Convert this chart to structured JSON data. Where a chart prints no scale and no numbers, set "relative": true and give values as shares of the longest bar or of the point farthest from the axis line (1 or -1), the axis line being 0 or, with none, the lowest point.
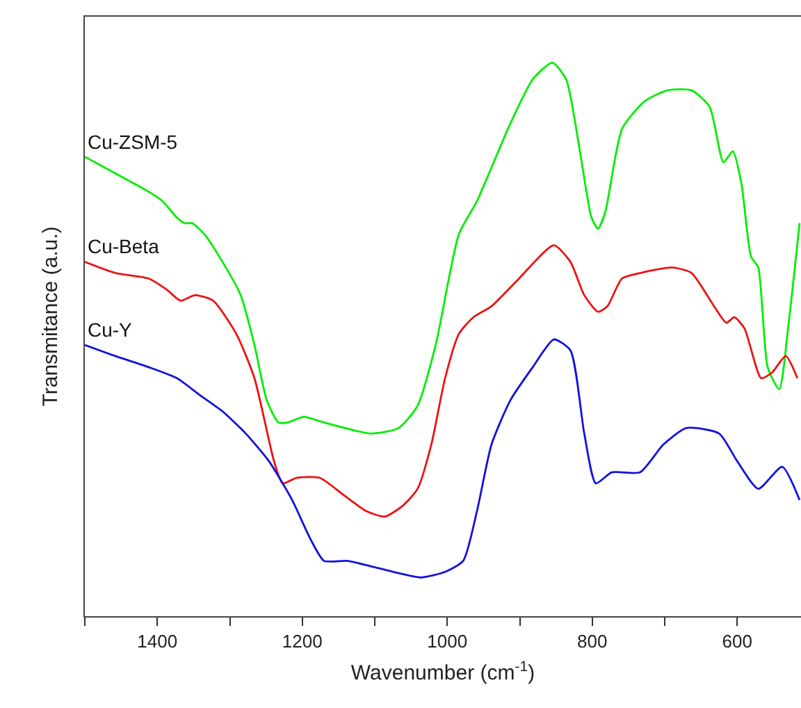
{
  "chart_data": {
    "type": "line",
    "relative": true,
    "xlabel": "Wavenumber (cm$^{-1}$)",
    "ylabel": "Transmitance (a.u.)",
    "xlim": [
      1500,
      512
    ],
    "xticks": [
      {
        "value": 1500,
        "label": null
      },
      1400,
      {
        "value": 1300,
        "label": null
      },
      1200,
      {
        "value": 1100,
        "label": null
      },
      1000,
      {
        "value": 900,
        "label": null
      },
      800,
      {
        "value": 700,
        "label": null
      },
      600
    ],
    "legend": false,
    "marker": "none",
    "line_style": "solid",
    "series": [
      {
        "name": "Cu-ZSM-5",
        "color": "#00ee00",
        "x": [
          1500,
          1458,
          1416,
          1393,
          1373,
          1362,
          1352,
          1335,
          1310,
          1285,
          1266,
          1249,
          1233,
          1220,
          1198,
          1170,
          1105,
          1067,
          1041,
          1016,
          984,
          959,
          913,
          882,
          855,
          836,
          817,
          801,
          792,
          782,
          759,
          728,
          696,
          663,
          638,
          619,
          606,
          594,
          581,
          571,
          558,
          542,
          529,
          514
        ],
        "values": [
          0.83,
          0.8,
          0.77,
          0.75,
          0.72,
          0.71,
          0.71,
          0.69,
          0.64,
          0.58,
          0.49,
          0.39,
          0.35,
          0.35,
          0.36,
          0.35,
          0.33,
          0.34,
          0.38,
          0.49,
          0.69,
          0.75,
          0.89,
          0.97,
          1.0,
          0.97,
          0.84,
          0.72,
          0.7,
          0.73,
          0.88,
          0.93,
          0.95,
          0.95,
          0.92,
          0.82,
          0.84,
          0.78,
          0.65,
          0.63,
          0.45,
          0.41,
          0.53,
          0.71
        ]
      },
      {
        "name": "Cu-Beta",
        "color": "#ee1111",
        "x": [
          1500,
          1458,
          1412,
          1387,
          1368,
          1348,
          1323,
          1291,
          1266,
          1239,
          1227,
          1208,
          1176,
          1144,
          1112,
          1086,
          1061,
          1041,
          1022,
          1003,
          984,
          964,
          939,
          901,
          853,
          830,
          811,
          792,
          779,
          759,
          734,
          690,
          663,
          632,
          615,
          604,
          590,
          567,
          552,
          533,
          517
        ],
        "values": [
          0.64,
          0.62,
          0.61,
          0.59,
          0.57,
          0.58,
          0.57,
          0.51,
          0.43,
          0.28,
          0.24,
          0.25,
          0.25,
          0.22,
          0.19,
          0.18,
          0.2,
          0.23,
          0.31,
          0.43,
          0.51,
          0.54,
          0.56,
          0.61,
          0.67,
          0.64,
          0.58,
          0.55,
          0.56,
          0.61,
          0.62,
          0.63,
          0.62,
          0.56,
          0.53,
          0.54,
          0.52,
          0.43,
          0.44,
          0.47,
          0.43
        ]
      },
      {
        "name": "Cu-Y",
        "color": "#1111dd",
        "x": [
          1500,
          1458,
          1412,
          1373,
          1342,
          1310,
          1278,
          1246,
          1214,
          1189,
          1170,
          1138,
          1105,
          1074,
          1036,
          1003,
          978,
          959,
          939,
          913,
          882,
          853,
          830,
          811,
          795,
          773,
          734,
          702,
          670,
          625,
          600,
          571,
          538,
          514
        ],
        "values": [
          0.49,
          0.47,
          0.45,
          0.43,
          0.4,
          0.37,
          0.33,
          0.28,
          0.21,
          0.14,
          0.1,
          0.1,
          0.09,
          0.08,
          0.07,
          0.08,
          0.1,
          0.19,
          0.31,
          0.39,
          0.45,
          0.5,
          0.48,
          0.33,
          0.24,
          0.26,
          0.26,
          0.31,
          0.34,
          0.33,
          0.28,
          0.23,
          0.27,
          0.21
        ]
      }
    ]
  }
}
